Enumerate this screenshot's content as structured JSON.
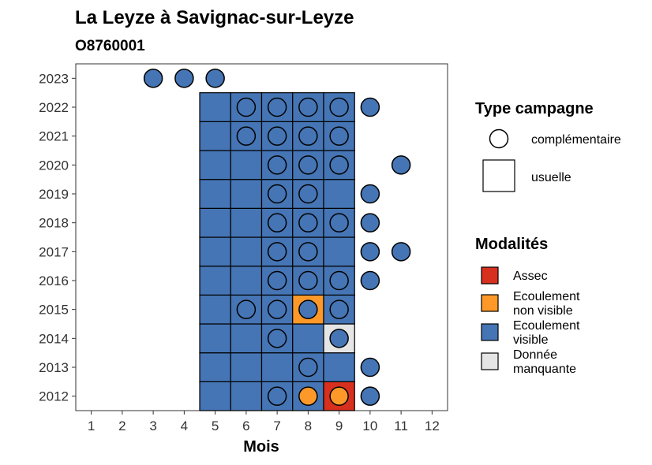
{
  "chart_data": {
    "type": "heatmap",
    "title": "La Leyze à Savignac-sur-Leyze",
    "subtitle": "O8760001",
    "xlabel": "Mois",
    "ylabel": "",
    "x_ticks": [
      1,
      2,
      3,
      4,
      5,
      6,
      7,
      8,
      9,
      10,
      11,
      12
    ],
    "y_ticks": [
      2012,
      2013,
      2014,
      2015,
      2016,
      2017,
      2018,
      2019,
      2020,
      2021,
      2022,
      2023
    ],
    "xlim": [
      0.5,
      12.5
    ],
    "ylim": [
      2011.5,
      2023.5
    ],
    "colors": {
      "Assec": "#d7301f",
      "Ecoulement non visible": "#fe9929",
      "Ecoulement visible": "#4575b4",
      "Donnée manquante": "#e5e5e5"
    },
    "usuelle": [
      {
        "year": 2012,
        "month": 5,
        "modalite": "Ecoulement visible"
      },
      {
        "year": 2012,
        "month": 6,
        "modalite": "Ecoulement visible"
      },
      {
        "year": 2012,
        "month": 7,
        "modalite": "Ecoulement visible"
      },
      {
        "year": 2012,
        "month": 8,
        "modalite": "Ecoulement visible"
      },
      {
        "year": 2012,
        "month": 9,
        "modalite": "Assec"
      },
      {
        "year": 2013,
        "month": 5,
        "modalite": "Ecoulement visible"
      },
      {
        "year": 2013,
        "month": 6,
        "modalite": "Ecoulement visible"
      },
      {
        "year": 2013,
        "month": 7,
        "modalite": "Ecoulement visible"
      },
      {
        "year": 2013,
        "month": 8,
        "modalite": "Ecoulement visible"
      },
      {
        "year": 2013,
        "month": 9,
        "modalite": "Ecoulement visible"
      },
      {
        "year": 2014,
        "month": 5,
        "modalite": "Ecoulement visible"
      },
      {
        "year": 2014,
        "month": 6,
        "modalite": "Ecoulement visible"
      },
      {
        "year": 2014,
        "month": 7,
        "modalite": "Ecoulement visible"
      },
      {
        "year": 2014,
        "month": 8,
        "modalite": "Ecoulement visible"
      },
      {
        "year": 2014,
        "month": 9,
        "modalite": "Donnée manquante"
      },
      {
        "year": 2015,
        "month": 5,
        "modalite": "Ecoulement visible"
      },
      {
        "year": 2015,
        "month": 6,
        "modalite": "Ecoulement visible"
      },
      {
        "year": 2015,
        "month": 7,
        "modalite": "Ecoulement visible"
      },
      {
        "year": 2015,
        "month": 8,
        "modalite": "Ecoulement non visible"
      },
      {
        "year": 2015,
        "month": 9,
        "modalite": "Ecoulement visible"
      },
      {
        "year": 2016,
        "month": 5,
        "modalite": "Ecoulement visible"
      },
      {
        "year": 2016,
        "month": 6,
        "modalite": "Ecoulement visible"
      },
      {
        "year": 2016,
        "month": 7,
        "modalite": "Ecoulement visible"
      },
      {
        "year": 2016,
        "month": 8,
        "modalite": "Ecoulement visible"
      },
      {
        "year": 2016,
        "month": 9,
        "modalite": "Ecoulement visible"
      },
      {
        "year": 2017,
        "month": 5,
        "modalite": "Ecoulement visible"
      },
      {
        "year": 2017,
        "month": 6,
        "modalite": "Ecoulement visible"
      },
      {
        "year": 2017,
        "month": 7,
        "modalite": "Ecoulement visible"
      },
      {
        "year": 2017,
        "month": 8,
        "modalite": "Ecoulement visible"
      },
      {
        "year": 2017,
        "month": 9,
        "modalite": "Ecoulement visible"
      },
      {
        "year": 2018,
        "month": 5,
        "modalite": "Ecoulement visible"
      },
      {
        "year": 2018,
        "month": 6,
        "modalite": "Ecoulement visible"
      },
      {
        "year": 2018,
        "month": 7,
        "modalite": "Ecoulement visible"
      },
      {
        "year": 2018,
        "month": 8,
        "modalite": "Ecoulement visible"
      },
      {
        "year": 2018,
        "month": 9,
        "modalite": "Ecoulement visible"
      },
      {
        "year": 2019,
        "month": 5,
        "modalite": "Ecoulement visible"
      },
      {
        "year": 2019,
        "month": 6,
        "modalite": "Ecoulement visible"
      },
      {
        "year": 2019,
        "month": 7,
        "modalite": "Ecoulement visible"
      },
      {
        "year": 2019,
        "month": 8,
        "modalite": "Ecoulement visible"
      },
      {
        "year": 2019,
        "month": 9,
        "modalite": "Ecoulement visible"
      },
      {
        "year": 2020,
        "month": 5,
        "modalite": "Ecoulement visible"
      },
      {
        "year": 2020,
        "month": 6,
        "modalite": "Ecoulement visible"
      },
      {
        "year": 2020,
        "month": 7,
        "modalite": "Ecoulement visible"
      },
      {
        "year": 2020,
        "month": 8,
        "modalite": "Ecoulement visible"
      },
      {
        "year": 2020,
        "month": 9,
        "modalite": "Ecoulement visible"
      },
      {
        "year": 2021,
        "month": 5,
        "modalite": "Ecoulement visible"
      },
      {
        "year": 2021,
        "month": 6,
        "modalite": "Ecoulement visible"
      },
      {
        "year": 2021,
        "month": 7,
        "modalite": "Ecoulement visible"
      },
      {
        "year": 2021,
        "month": 8,
        "modalite": "Ecoulement visible"
      },
      {
        "year": 2021,
        "month": 9,
        "modalite": "Ecoulement visible"
      },
      {
        "year": 2022,
        "month": 5,
        "modalite": "Ecoulement visible"
      },
      {
        "year": 2022,
        "month": 6,
        "modalite": "Ecoulement visible"
      },
      {
        "year": 2022,
        "month": 7,
        "modalite": "Ecoulement visible"
      },
      {
        "year": 2022,
        "month": 8,
        "modalite": "Ecoulement visible"
      },
      {
        "year": 2022,
        "month": 9,
        "modalite": "Ecoulement visible"
      }
    ],
    "complementaire": [
      {
        "year": 2012,
        "month": 7,
        "modalite": "Ecoulement visible"
      },
      {
        "year": 2012,
        "month": 8,
        "modalite": "Ecoulement non visible"
      },
      {
        "year": 2012,
        "month": 9,
        "modalite": "Ecoulement non visible"
      },
      {
        "year": 2012,
        "month": 10,
        "modalite": "Ecoulement visible"
      },
      {
        "year": 2013,
        "month": 8,
        "modalite": "Ecoulement visible"
      },
      {
        "year": 2013,
        "month": 10,
        "modalite": "Ecoulement visible"
      },
      {
        "year": 2014,
        "month": 7,
        "modalite": "Ecoulement visible"
      },
      {
        "year": 2014,
        "month": 9,
        "modalite": "Ecoulement visible"
      },
      {
        "year": 2015,
        "month": 6,
        "modalite": "Ecoulement visible"
      },
      {
        "year": 2015,
        "month": 7,
        "modalite": "Ecoulement visible"
      },
      {
        "year": 2015,
        "month": 8,
        "modalite": "Ecoulement visible"
      },
      {
        "year": 2015,
        "month": 9,
        "modalite": "Ecoulement visible"
      },
      {
        "year": 2016,
        "month": 7,
        "modalite": "Ecoulement visible"
      },
      {
        "year": 2016,
        "month": 8,
        "modalite": "Ecoulement visible"
      },
      {
        "year": 2016,
        "month": 9,
        "modalite": "Ecoulement visible"
      },
      {
        "year": 2016,
        "month": 10,
        "modalite": "Ecoulement visible"
      },
      {
        "year": 2017,
        "month": 7,
        "modalite": "Ecoulement visible"
      },
      {
        "year": 2017,
        "month": 8,
        "modalite": "Ecoulement visible"
      },
      {
        "year": 2017,
        "month": 10,
        "modalite": "Ecoulement visible"
      },
      {
        "year": 2017,
        "month": 11,
        "modalite": "Ecoulement visible"
      },
      {
        "year": 2018,
        "month": 7,
        "modalite": "Ecoulement visible"
      },
      {
        "year": 2018,
        "month": 8,
        "modalite": "Ecoulement visible"
      },
      {
        "year": 2018,
        "month": 9,
        "modalite": "Ecoulement visible"
      },
      {
        "year": 2018,
        "month": 10,
        "modalite": "Ecoulement visible"
      },
      {
        "year": 2019,
        "month": 7,
        "modalite": "Ecoulement visible"
      },
      {
        "year": 2019,
        "month": 8,
        "modalite": "Ecoulement visible"
      },
      {
        "year": 2019,
        "month": 10,
        "modalite": "Ecoulement visible"
      },
      {
        "year": 2020,
        "month": 7,
        "modalite": "Ecoulement visible"
      },
      {
        "year": 2020,
        "month": 8,
        "modalite": "Ecoulement visible"
      },
      {
        "year": 2020,
        "month": 9,
        "modalite": "Ecoulement visible"
      },
      {
        "year": 2020,
        "month": 11,
        "modalite": "Ecoulement visible"
      },
      {
        "year": 2021,
        "month": 6,
        "modalite": "Ecoulement visible"
      },
      {
        "year": 2021,
        "month": 7,
        "modalite": "Ecoulement visible"
      },
      {
        "year": 2021,
        "month": 8,
        "modalite": "Ecoulement visible"
      },
      {
        "year": 2021,
        "month": 9,
        "modalite": "Ecoulement visible"
      },
      {
        "year": 2022,
        "month": 6,
        "modalite": "Ecoulement visible"
      },
      {
        "year": 2022,
        "month": 7,
        "modalite": "Ecoulement visible"
      },
      {
        "year": 2022,
        "month": 8,
        "modalite": "Ecoulement visible"
      },
      {
        "year": 2022,
        "month": 9,
        "modalite": "Ecoulement visible"
      },
      {
        "year": 2022,
        "month": 10,
        "modalite": "Ecoulement visible"
      },
      {
        "year": 2023,
        "month": 3,
        "modalite": "Ecoulement visible"
      },
      {
        "year": 2023,
        "month": 4,
        "modalite": "Ecoulement visible"
      },
      {
        "year": 2023,
        "month": 5,
        "modalite": "Ecoulement visible"
      }
    ],
    "grid": false,
    "legend_placement": "right",
    "legend": {
      "shape_title": "Type campagne",
      "shape_items": [
        "complémentaire",
        "usuelle"
      ],
      "fill_title": "Modalités",
      "fill_items": [
        {
          "lines": [
            "Assec"
          ],
          "color": "#d7301f"
        },
        {
          "lines": [
            "Ecoulement",
            "non visible"
          ],
          "color": "#fe9929"
        },
        {
          "lines": [
            "Ecoulement",
            "visible"
          ],
          "color": "#4575b4"
        },
        {
          "lines": [
            "Donnée",
            "manquante"
          ],
          "color": "#e5e5e5"
        }
      ]
    }
  }
}
